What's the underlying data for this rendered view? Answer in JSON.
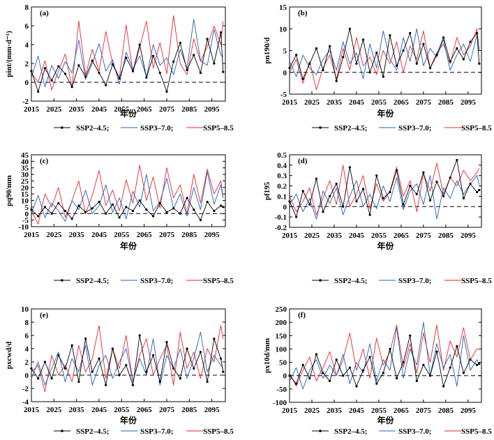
{
  "colors": {
    "ssp245": "#000000",
    "ssp370": "#1f5fbf",
    "ssp585": "#e8262b"
  },
  "xlabel": "年份",
  "legend": [
    "SSP2–4.5;",
    "SSP3–7.0;",
    "SSP5–8.5"
  ],
  "chart_data": [
    {
      "type": "line",
      "panel": "(a)",
      "ylabel": "pint/(mm·d⁻¹)",
      "x": [
        2015,
        2018,
        2021,
        2024,
        2027,
        2030,
        2033,
        2036,
        2039,
        2042,
        2045,
        2048,
        2051,
        2054,
        2057,
        2060,
        2063,
        2066,
        2069,
        2072,
        2075,
        2078,
        2081,
        2084,
        2087,
        2090,
        2093,
        2096,
        2099,
        2100
      ],
      "xlim": [
        2015,
        2101
      ],
      "xticks": [
        2015,
        2025,
        2035,
        2045,
        2055,
        2065,
        2075,
        2085,
        2095
      ],
      "ylim": [
        -2,
        8
      ],
      "yticks": [
        -2,
        0,
        2,
        4,
        6,
        8
      ],
      "series": [
        {
          "name": "SSP2–4.5",
          "values": [
            1.2,
            -1.0,
            1.5,
            0.2,
            1.7,
            0.9,
            -0.5,
            1.8,
            0.6,
            2.3,
            1.0,
            -0.3,
            1.9,
            0.4,
            2.6,
            1.2,
            4.0,
            0.5,
            2.8,
            1.0,
            -1.0,
            2.2,
            4.2,
            1.3,
            2.9,
            1.0,
            4.6,
            2.0,
            5.3,
            1.1
          ]
        },
        {
          "name": "SSP3–7.0",
          "values": [
            0.5,
            2.8,
            -0.5,
            1.8,
            0.4,
            2.2,
            1.0,
            4.5,
            0.3,
            2.0,
            4.1,
            1.2,
            2.4,
            -0.2,
            3.2,
            1.4,
            2.8,
            0.6,
            4.0,
            1.8,
            2.6,
            0.8,
            3.5,
            1.5,
            6.7,
            2.3,
            1.8,
            5.6,
            2.9,
            2.7
          ]
        },
        {
          "name": "SSP5–8.5",
          "values": [
            1.0,
            0.0,
            2.3,
            -0.8,
            1.2,
            3.0,
            -0.5,
            6.5,
            0.8,
            3.5,
            1.2,
            5.4,
            2.0,
            0.5,
            6.1,
            1.0,
            3.7,
            6.5,
            1.5,
            4.2,
            0.9,
            7.1,
            2.0,
            0.8,
            4.6,
            2.2,
            3.8,
            6.0,
            4.0,
            6.5
          ]
        }
      ]
    },
    {
      "type": "line",
      "panel": "(b)",
      "ylabel": "pn190/d",
      "x": [
        2015,
        2018,
        2021,
        2024,
        2027,
        2030,
        2033,
        2036,
        2039,
        2042,
        2045,
        2048,
        2051,
        2054,
        2057,
        2060,
        2063,
        2066,
        2069,
        2072,
        2075,
        2078,
        2081,
        2084,
        2087,
        2090,
        2093,
        2096,
        2099,
        2100
      ],
      "xlim": [
        2015,
        2101
      ],
      "xticks": [
        2015,
        2025,
        2035,
        2045,
        2055,
        2065,
        2075,
        2085,
        2095
      ],
      "ylim": [
        -5,
        15
      ],
      "yticks": [
        -5,
        0,
        5,
        10,
        15
      ],
      "series": [
        {
          "name": "SSP2–4.5",
          "values": [
            1.0,
            4.0,
            -1.5,
            2.0,
            5.5,
            0.5,
            6.0,
            -2.0,
            3.5,
            10.0,
            2.0,
            7.5,
            0.0,
            4.5,
            -1.0,
            8.5,
            1.5,
            5.0,
            9.0,
            2.0,
            6.5,
            1.0,
            4.0,
            8.0,
            2.5,
            5.5,
            3.0,
            7.0,
            9.0,
            2.0
          ]
        },
        {
          "name": "SSP3–7.0",
          "values": [
            2.5,
            -1.0,
            4.0,
            1.0,
            -0.5,
            3.0,
            5.0,
            0.5,
            7.0,
            2.0,
            4.5,
            -1.5,
            6.5,
            1.0,
            9.5,
            3.0,
            0.5,
            8.0,
            2.5,
            10.0,
            1.5,
            5.5,
            3.5,
            7.5,
            0.5,
            4.0,
            6.5,
            2.5,
            8.5,
            5.0
          ]
        },
        {
          "name": "SSP5–8.5",
          "values": [
            0.0,
            3.0,
            -2.5,
            2.5,
            -4.0,
            1.0,
            4.0,
            -1.5,
            5.5,
            0.5,
            8.0,
            1.5,
            3.5,
            -0.5,
            5.0,
            2.0,
            7.0,
            0.0,
            6.0,
            3.0,
            9.5,
            1.0,
            4.5,
            6.5,
            2.0,
            8.0,
            4.0,
            6.0,
            10.0,
            5.0
          ]
        }
      ]
    },
    {
      "type": "line",
      "panel": "(c)",
      "ylabel": "pq90/mm",
      "x": [
        2015,
        2018,
        2021,
        2024,
        2027,
        2030,
        2033,
        2036,
        2039,
        2042,
        2045,
        2048,
        2051,
        2054,
        2057,
        2060,
        2063,
        2066,
        2069,
        2072,
        2075,
        2078,
        2081,
        2084,
        2087,
        2090,
        2093,
        2096,
        2099,
        2100
      ],
      "xlim": [
        2015,
        2101
      ],
      "xticks": [
        2015,
        2025,
        2035,
        2045,
        2055,
        2065,
        2075,
        2085,
        2095
      ],
      "ylim": [
        -10,
        45
      ],
      "yticks": [
        -10,
        -5,
        0,
        5,
        10,
        15,
        20,
        25,
        30,
        35,
        40,
        45
      ],
      "series": [
        {
          "name": "SSP2–4.5",
          "values": [
            3.0,
            -2.0,
            5.0,
            0.0,
            8.0,
            2.0,
            -4.0,
            6.0,
            1.0,
            4.0,
            9.0,
            0.0,
            7.0,
            -3.0,
            5.0,
            2.0,
            10.0,
            3.0,
            -2.0,
            8.0,
            1.0,
            4.0,
            0.0,
            12.0,
            3.0,
            -5.0,
            9.0,
            2.0,
            6.0,
            5.0
          ]
        },
        {
          "name": "SSP3–7.0",
          "values": [
            0.0,
            14.0,
            -3.0,
            8.0,
            2.0,
            -6.0,
            10.0,
            3.0,
            18.0,
            0.0,
            6.0,
            22.0,
            1.0,
            12.0,
            -4.0,
            17.0,
            5.0,
            30.0,
            2.0,
            9.0,
            27.0,
            4.0,
            15.0,
            -2.0,
            20.0,
            3.0,
            32.0,
            7.0,
            22.0,
            12.0
          ]
        },
        {
          "name": "SSP5–8.5",
          "values": [
            2.0,
            -8.0,
            15.0,
            5.0,
            20.0,
            -3.0,
            10.0,
            25.0,
            0.0,
            14.0,
            33.0,
            6.0,
            18.0,
            2.0,
            26.0,
            8.0,
            37.0,
            10.0,
            28.0,
            4.0,
            35.0,
            12.0,
            22.0,
            0.0,
            30.0,
            8.0,
            34.0,
            15.0,
            25.0,
            12.0
          ]
        }
      ]
    },
    {
      "type": "line",
      "panel": "(d)",
      "ylabel": "pf195",
      "x": [
        2015,
        2018,
        2021,
        2024,
        2027,
        2030,
        2033,
        2036,
        2039,
        2042,
        2045,
        2048,
        2051,
        2054,
        2057,
        2060,
        2063,
        2066,
        2069,
        2072,
        2075,
        2078,
        2081,
        2084,
        2087,
        2090,
        2093,
        2096,
        2099,
        2100
      ],
      "xlim": [
        2015,
        2101
      ],
      "xticks": [
        2015,
        2025,
        2035,
        2045,
        2055,
        2065,
        2075,
        2085,
        2095
      ],
      "ylim": [
        -0.2,
        0.5
      ],
      "yticks": [
        -0.2,
        -0.1,
        0,
        0.1,
        0.2,
        0.3,
        0.4,
        0.5
      ],
      "series": [
        {
          "name": "SSP2–4.5",
          "values": [
            0.05,
            -0.1,
            0.15,
            0.02,
            0.27,
            -0.05,
            0.1,
            0.22,
            0.0,
            0.38,
            0.05,
            0.17,
            -0.08,
            0.3,
            0.08,
            0.14,
            0.35,
            0.02,
            0.2,
            0.12,
            0.33,
            0.06,
            0.24,
            0.1,
            0.28,
            0.45,
            0.08,
            0.22,
            0.14,
            0.16
          ]
        },
        {
          "name": "SSP3–7.0",
          "values": [
            0.02,
            0.12,
            -0.05,
            0.08,
            -0.12,
            0.15,
            0.03,
            0.18,
            -0.08,
            0.1,
            0.25,
            0.0,
            0.12,
            -0.02,
            0.2,
            0.05,
            0.28,
            -0.03,
            0.15,
            0.22,
            0.02,
            0.3,
            -0.12,
            0.18,
            0.08,
            0.25,
            0.12,
            0.22,
            0.3,
            0.21
          ]
        },
        {
          "name": "SSP5–8.5",
          "values": [
            0.1,
            -0.05,
            0.05,
            0.18,
            -0.08,
            0.08,
            0.25,
            0.02,
            0.4,
            0.0,
            0.12,
            0.3,
            -0.02,
            0.22,
            0.05,
            0.15,
            0.38,
            0.1,
            0.25,
            -0.05,
            0.32,
            0.15,
            0.42,
            0.12,
            0.28,
            0.2,
            0.35,
            0.25,
            0.33,
            0.37
          ]
        }
      ]
    },
    {
      "type": "line",
      "panel": "(e)",
      "ylabel": "pxcwd/d",
      "x": [
        2015,
        2018,
        2021,
        2024,
        2027,
        2030,
        2033,
        2036,
        2039,
        2042,
        2045,
        2048,
        2051,
        2054,
        2057,
        2060,
        2063,
        2066,
        2069,
        2072,
        2075,
        2078,
        2081,
        2084,
        2087,
        2090,
        2093,
        2096,
        2099,
        2100
      ],
      "xlim": [
        2015,
        2101
      ],
      "xticks": [
        2015,
        2025,
        2035,
        2045,
        2055,
        2065,
        2075,
        2085,
        2095
      ],
      "ylim": [
        -4,
        10
      ],
      "yticks": [
        -4,
        -2,
        0,
        2,
        4,
        6,
        8,
        10
      ],
      "series": [
        {
          "name": "SSP2–4.5",
          "values": [
            1.0,
            -0.5,
            2.0,
            -0.5,
            3.0,
            1.0,
            4.5,
            -1.0,
            5.5,
            0.5,
            2.5,
            -1.5,
            4.0,
            0.0,
            1.5,
            -1.5,
            6.0,
            0.5,
            3.0,
            -1.0,
            5.0,
            1.0,
            -0.5,
            4.0,
            1.0,
            3.5,
            -1.0,
            5.5,
            2.5,
            0.5
          ]
        },
        {
          "name": "SSP3–7.0",
          "values": [
            -0.5,
            2.0,
            -1.5,
            1.0,
            3.5,
            -1.0,
            2.5,
            0.5,
            4.5,
            -1.5,
            1.5,
            3.0,
            -0.5,
            2.0,
            4.0,
            -1.0,
            2.5,
            0.0,
            5.5,
            -1.5,
            3.0,
            1.0,
            4.0,
            -0.5,
            2.5,
            6.5,
            0.5,
            3.0,
            1.5,
            1.0
          ]
        },
        {
          "name": "SSP5–8.5",
          "values": [
            0.5,
            1.5,
            -2.5,
            3.0,
            0.0,
            1.5,
            -1.0,
            4.5,
            0.5,
            2.5,
            7.5,
            -0.5,
            4.0,
            1.0,
            6.0,
            -1.0,
            3.0,
            5.5,
            0.0,
            2.5,
            4.5,
            -1.5,
            6.5,
            1.0,
            3.5,
            -0.5,
            4.0,
            2.0,
            7.5,
            5.5
          ]
        }
      ]
    },
    {
      "type": "line",
      "panel": "(f)",
      "ylabel": "px10d/mm",
      "x": [
        2015,
        2018,
        2021,
        2024,
        2027,
        2030,
        2033,
        2036,
        2039,
        2042,
        2045,
        2048,
        2051,
        2054,
        2057,
        2060,
        2063,
        2066,
        2069,
        2072,
        2075,
        2078,
        2081,
        2084,
        2087,
        2090,
        2093,
        2096,
        2099,
        2100
      ],
      "xlim": [
        2015,
        2101
      ],
      "xticks": [
        2015,
        2025,
        2035,
        2045,
        2055,
        2065,
        2075,
        2085,
        2095
      ],
      "ylim": [
        -100,
        250
      ],
      "yticks": [
        -100,
        -50,
        0,
        50,
        100,
        150,
        200,
        250
      ],
      "series": [
        {
          "name": "SSP2–4.5",
          "values": [
            0,
            -30,
            40,
            -10,
            80,
            10,
            -20,
            60,
            0,
            30,
            -40,
            20,
            70,
            -30,
            10,
            100,
            -10,
            50,
            150,
            -20,
            40,
            0,
            90,
            -40,
            30,
            110,
            10,
            60,
            40,
            45
          ]
        },
        {
          "name": "SSP3–7.0",
          "values": [
            -20,
            30,
            -50,
            20,
            60,
            -10,
            40,
            0,
            80,
            -30,
            50,
            10,
            120,
            -20,
            60,
            20,
            180,
            -10,
            100,
            40,
            200,
            0,
            120,
            30,
            80,
            -40,
            150,
            20,
            60,
            40
          ]
        },
        {
          "name": "SSP5–8.5",
          "values": [
            10,
            -40,
            20,
            70,
            -20,
            30,
            90,
            0,
            60,
            160,
            20,
            100,
            -10,
            140,
            40,
            90,
            190,
            30,
            120,
            10,
            160,
            50,
            190,
            20,
            130,
            70,
            180,
            60,
            100,
            100
          ]
        }
      ]
    }
  ]
}
